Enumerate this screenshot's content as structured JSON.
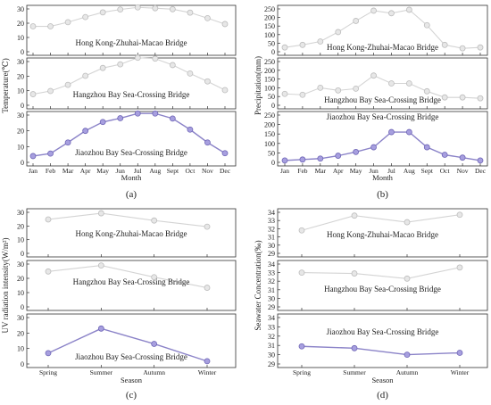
{
  "colors": {
    "highlight_line": "#8b83c8",
    "highlight_marker_fill": "#a79fdf",
    "highlight_marker_stroke": "#6f66b6",
    "muted_line": "#d4d4d4",
    "muted_marker_fill": "#e7e7e7",
    "muted_marker_stroke": "#bdbdbd",
    "axis": "#333333"
  },
  "panel_letters": {
    "a": "(a)",
    "b": "(b)",
    "c": "(c)",
    "d": "(d)"
  },
  "chart_data": [
    {
      "type": "line",
      "panel": "(a)",
      "xlabel": "Month",
      "ylabel": "Temperature(℃)",
      "categories": [
        "Jan",
        "Feb",
        "Mar",
        "Apr",
        "May",
        "Jun",
        "Jul",
        "Aug",
        "Sept",
        "Oct",
        "Nov",
        "Dec"
      ],
      "ylim": [
        0,
        40
      ],
      "yticks": [
        "0",
        "10",
        "20",
        "30"
      ],
      "subplots": [
        {
          "annotation": "Hong Kong-Zhuhai-Macao Bridge",
          "highlight": false,
          "values": [
            17.8,
            17.8,
            20.7,
            24.3,
            27.6,
            29.6,
            31.1,
            30.5,
            29.8,
            27.4,
            23.5,
            19.4
          ]
        },
        {
          "annotation": "Hangzhou Bay Sea-Crossing Bridge",
          "highlight": false,
          "values": [
            7.6,
            9.8,
            14.0,
            20.2,
            25.6,
            28.1,
            32.6,
            32.0,
            27.6,
            21.8,
            16.4,
            10.4
          ]
        },
        {
          "annotation": "Jiaozhou Bay Sea-Crossing Bridge",
          "highlight": true,
          "values": [
            4.0,
            5.6,
            12.6,
            20.0,
            25.6,
            28.0,
            31.0,
            31.0,
            27.8,
            20.8,
            12.6,
            5.8
          ]
        }
      ]
    },
    {
      "type": "line",
      "panel": "(b)",
      "xlabel": "Month",
      "ylabel": "Precipitation(mm)",
      "categories": [
        "Jan",
        "Feb",
        "Mar",
        "Apr",
        "May",
        "Jun",
        "Jul",
        "Aug",
        "Sept",
        "Oct",
        "Nov",
        "Dec"
      ],
      "ylim": [
        0,
        250
      ],
      "yticks": [
        "0",
        "50",
        "100",
        "150",
        "200",
        "250"
      ],
      "subplots": [
        {
          "annotation": "Hong Kong-Zhuhai-Macao Bridge",
          "highlight": false,
          "values": [
            25,
            40,
            60,
            115,
            180,
            240,
            225,
            245,
            155,
            40,
            20,
            25
          ]
        },
        {
          "annotation": "Hangzhou Bay Sea-Crossing Bridge",
          "highlight": false,
          "values": [
            65,
            60,
            100,
            85,
            95,
            170,
            125,
            125,
            80,
            45,
            45,
            40
          ]
        },
        {
          "annotation": "Jiaozhou Bay Sea-Crossing Bridge",
          "highlight": true,
          "values": [
            10,
            15,
            20,
            35,
            55,
            80,
            160,
            160,
            80,
            40,
            25,
            10
          ]
        }
      ]
    },
    {
      "type": "line",
      "panel": "(c)",
      "xlabel": "Season",
      "ylabel": "UV radiation intensity(W/m²)",
      "categories": [
        "Spring",
        "Summer",
        "Autumn",
        "Winter"
      ],
      "ylim": [
        0,
        30
      ],
      "yticks": [
        "0",
        "10",
        "20",
        "30"
      ],
      "subplots": [
        {
          "annotation": "Hong Kong-Zhuhai-Macao Bridge",
          "highlight": false,
          "values": [
            24.8,
            29.3,
            24.0,
            19.5
          ]
        },
        {
          "annotation": "Hangzhou Bay Sea-Crossing Bridge",
          "highlight": false,
          "values": [
            24.8,
            29.0,
            20.8,
            13.4
          ]
        },
        {
          "annotation": "Jiaozhou Bay Sea-Crossing Bridge",
          "highlight": true,
          "values": [
            7.0,
            22.9,
            13.0,
            1.8
          ]
        }
      ]
    },
    {
      "type": "line",
      "panel": "(d)",
      "xlabel": "Season",
      "ylabel": "Seawater Concentration(‰)",
      "categories": [
        "Spring",
        "Summer",
        "Autumn",
        "Winter"
      ],
      "ylim": [
        29,
        34
      ],
      "yticks": [
        "29",
        "30",
        "31",
        "32",
        "33",
        "34"
      ],
      "subplots": [
        {
          "annotation": "Hong Kong-Zhuhai-Macao Bridge",
          "highlight": false,
          "values": [
            31.8,
            33.6,
            32.8,
            33.7
          ]
        },
        {
          "annotation": "Hangzhou Bay Sea-Crossing Bridge",
          "highlight": false,
          "values": [
            33.0,
            32.9,
            32.3,
            33.6
          ]
        },
        {
          "annotation": "Jiaozhou Bay Sea-Crossing Bridge",
          "highlight": true,
          "values": [
            30.9,
            30.7,
            30.0,
            30.2
          ]
        }
      ]
    }
  ]
}
